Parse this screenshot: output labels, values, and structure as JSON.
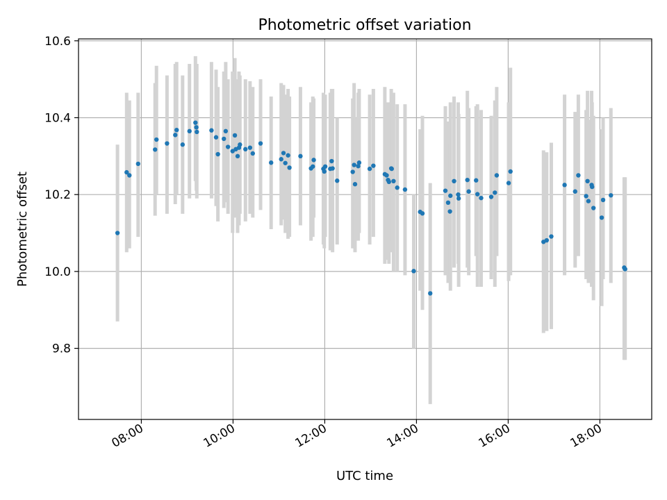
{
  "chart_data": {
    "type": "scatter",
    "title": "Photometric offset variation",
    "xlabel": "UTC time",
    "ylabel": "Photometric offset",
    "grid": true,
    "xlim": [
      6.63,
      19.13
    ],
    "ylim": [
      9.615,
      10.605
    ],
    "x_ticks": [
      8,
      10,
      12,
      14,
      16,
      18
    ],
    "x_tick_labels": [
      "08:00",
      "10:00",
      "12:00",
      "14:00",
      "16:00",
      "18:00"
    ],
    "y_ticks": [
      9.8,
      10.0,
      10.2,
      10.4,
      10.6
    ],
    "y_tick_labels": [
      "9.8",
      "10.0",
      "10.2",
      "10.4",
      "10.6"
    ],
    "colors": {
      "marker": "#1f77b4",
      "errorbar": "#d3d3d3"
    },
    "series": [
      {
        "x_hours": [
          7.48,
          7.68,
          7.74,
          7.93,
          8.3,
          8.33,
          8.56,
          8.74,
          8.77,
          8.9,
          9.05,
          9.18,
          9.2,
          9.21,
          9.53,
          9.63,
          9.67,
          9.8,
          9.84,
          9.89,
          9.99,
          10.04,
          10.06,
          10.1,
          10.13,
          10.15,
          10.27,
          10.37,
          10.43,
          10.6,
          10.83,
          11.05,
          11.1,
          11.14,
          11.2,
          11.23,
          11.47,
          11.7,
          11.74,
          11.76,
          11.97,
          11.99,
          12.01,
          12.12,
          12.15,
          12.17,
          12.27,
          12.61,
          12.64,
          12.66,
          12.73,
          12.75,
          12.98,
          13.06,
          13.31,
          13.35,
          13.38,
          13.4,
          13.45,
          13.46,
          13.5,
          13.58,
          13.75,
          13.94,
          14.08,
          14.13,
          14.3,
          14.63,
          14.69,
          14.73,
          14.74,
          14.82,
          14.91,
          14.92,
          15.11,
          15.14,
          15.3,
          15.33,
          15.41,
          15.63,
          15.71,
          15.75,
          16.01,
          16.05,
          16.77,
          16.84,
          16.94,
          17.23,
          17.46,
          17.53,
          17.7,
          17.73,
          17.75,
          17.82,
          17.83,
          17.86,
          18.04,
          18.07,
          18.24,
          18.53,
          18.55
        ],
        "y": [
          10.1,
          10.258,
          10.25,
          10.28,
          10.317,
          10.343,
          10.333,
          10.355,
          10.368,
          10.33,
          10.365,
          10.387,
          10.375,
          10.363,
          10.367,
          10.349,
          10.305,
          10.345,
          10.365,
          10.324,
          10.313,
          10.354,
          10.318,
          10.3,
          10.322,
          10.33,
          10.318,
          10.322,
          10.307,
          10.333,
          10.283,
          10.292,
          10.308,
          10.282,
          10.302,
          10.27,
          10.3,
          10.268,
          10.273,
          10.29,
          10.267,
          10.26,
          10.273,
          10.267,
          10.287,
          10.268,
          10.236,
          10.259,
          10.277,
          10.227,
          10.274,
          10.283,
          10.267,
          10.275,
          10.253,
          10.25,
          10.238,
          10.233,
          10.268,
          10.267,
          10.235,
          10.218,
          10.213,
          10.001,
          10.155,
          10.151,
          9.943,
          10.21,
          10.179,
          10.156,
          10.197,
          10.235,
          10.2,
          10.19,
          10.238,
          10.208,
          10.237,
          10.201,
          10.191,
          10.194,
          10.205,
          10.25,
          10.23,
          10.26,
          10.077,
          10.081,
          10.091,
          10.225,
          10.208,
          10.25,
          10.196,
          10.235,
          10.183,
          10.225,
          10.22,
          10.165,
          10.14,
          10.186,
          10.198,
          10.01,
          10.006
        ],
        "y_lower": [
          9.87,
          10.05,
          10.06,
          10.09,
          10.145,
          10.2,
          10.15,
          10.175,
          10.2,
          10.15,
          10.19,
          10.235,
          10.21,
          10.19,
          10.19,
          10.17,
          10.13,
          10.165,
          10.18,
          10.15,
          10.1,
          10.15,
          10.14,
          10.1,
          10.12,
          10.15,
          10.13,
          10.15,
          10.14,
          10.16,
          10.11,
          10.12,
          10.135,
          10.1,
          10.085,
          10.09,
          10.12,
          10.08,
          10.09,
          10.14,
          10.07,
          10.06,
          10.09,
          10.055,
          10.1,
          10.05,
          10.07,
          10.06,
          10.09,
          10.05,
          10.08,
          10.1,
          10.07,
          10.09,
          10.02,
          10.07,
          10.03,
          10.02,
          10.05,
          10.08,
          10.0,
          10.0,
          9.99,
          9.8,
          9.95,
          9.9,
          9.655,
          9.99,
          9.97,
          9.98,
          9.95,
          10.01,
          10.02,
          9.96,
          10.01,
          9.99,
          10.04,
          9.96,
          9.96,
          9.98,
          9.96,
          10.04,
          9.975,
          9.99,
          9.84,
          9.845,
          9.85,
          9.99,
          10.01,
          10.04,
          9.98,
          10.01,
          9.97,
          9.96,
          10.02,
          9.925,
          9.91,
          9.98,
          9.97,
          9.77,
          9.77
        ],
        "y_upper": [
          10.33,
          10.465,
          10.445,
          10.465,
          10.49,
          10.535,
          10.51,
          10.54,
          10.545,
          10.51,
          10.54,
          10.56,
          10.54,
          10.54,
          10.545,
          10.525,
          10.48,
          10.52,
          10.545,
          10.5,
          10.52,
          10.555,
          10.5,
          10.485,
          10.52,
          10.51,
          10.5,
          10.495,
          10.48,
          10.5,
          10.455,
          10.49,
          10.485,
          10.46,
          10.475,
          10.455,
          10.48,
          10.44,
          10.455,
          10.45,
          10.465,
          10.45,
          10.46,
          10.465,
          10.475,
          10.475,
          10.4,
          10.45,
          10.49,
          10.4,
          10.465,
          10.475,
          10.46,
          10.475,
          10.48,
          10.43,
          10.44,
          10.435,
          10.475,
          10.455,
          10.465,
          10.435,
          10.435,
          10.2,
          10.37,
          10.405,
          10.23,
          10.43,
          10.39,
          10.33,
          10.44,
          10.455,
          10.44,
          10.41,
          10.47,
          10.425,
          10.43,
          10.435,
          10.42,
          10.405,
          10.445,
          10.48,
          10.44,
          10.53,
          10.315,
          10.31,
          10.335,
          10.46,
          10.415,
          10.46,
          10.42,
          10.47,
          10.395,
          10.47,
          10.44,
          10.405,
          10.37,
          10.4,
          10.425,
          10.245,
          10.245
        ]
      }
    ]
  }
}
